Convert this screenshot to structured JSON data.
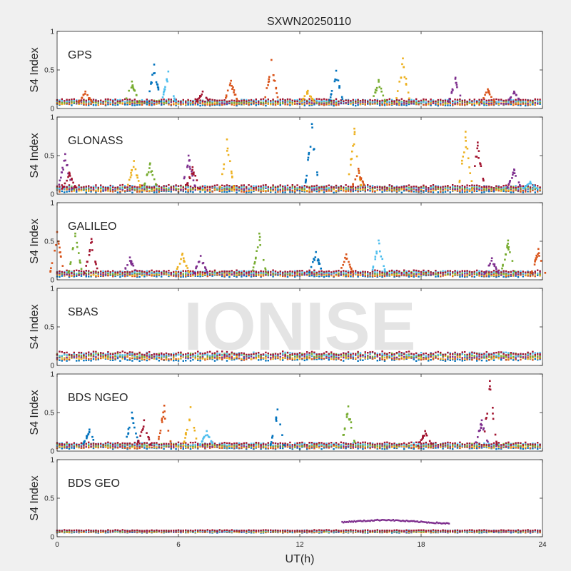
{
  "figure": {
    "title": "SXWN20250110",
    "watermark": "IONISE",
    "background": "#f0f0f0",
    "axes_background": "#ffffff"
  },
  "chart_data": {
    "type": "scatter",
    "title": "SXWN20250110",
    "xlabel": "UT(h)",
    "ylabel": "S4 Index",
    "xlim": [
      0,
      24
    ],
    "ylim": [
      0,
      1
    ],
    "xticks": [
      0,
      6,
      12,
      18,
      24
    ],
    "yticks": [
      0,
      0.5,
      1
    ],
    "ytick_labels": [
      "0",
      "0.5",
      "1"
    ],
    "grid": false,
    "series_colors": [
      "#0072BD",
      "#D95319",
      "#EDB120",
      "#7E2F8E",
      "#77AC30",
      "#4DBEEE",
      "#A2142F"
    ],
    "panels": [
      {
        "label": "GPS",
        "baseline": 0.08,
        "noise": 0.035,
        "spikes": [
          {
            "x": 1.4,
            "peak": 0.22,
            "color": 1
          },
          {
            "x": 3.7,
            "peak": 0.35,
            "color": 4
          },
          {
            "x": 4.8,
            "peak": 0.57,
            "color": 0
          },
          {
            "x": 5.5,
            "peak": 0.48,
            "color": 5
          },
          {
            "x": 7.2,
            "peak": 0.22,
            "color": 6
          },
          {
            "x": 8.6,
            "peak": 0.36,
            "color": 1
          },
          {
            "x": 10.6,
            "peak": 0.63,
            "color": 1
          },
          {
            "x": 12.4,
            "peak": 0.23,
            "color": 2
          },
          {
            "x": 13.8,
            "peak": 0.49,
            "color": 0
          },
          {
            "x": 15.9,
            "peak": 0.37,
            "color": 4
          },
          {
            "x": 17.1,
            "peak": 0.65,
            "color": 2
          },
          {
            "x": 19.7,
            "peak": 0.4,
            "color": 3
          },
          {
            "x": 21.3,
            "peak": 0.25,
            "color": 1
          },
          {
            "x": 22.6,
            "peak": 0.22,
            "color": 3
          }
        ]
      },
      {
        "label": "GLONASS",
        "baseline": 0.07,
        "noise": 0.04,
        "spikes": [
          {
            "x": 0.4,
            "peak": 0.52,
            "color": 3
          },
          {
            "x": 0.6,
            "peak": 0.28,
            "color": 6
          },
          {
            "x": 3.8,
            "peak": 0.43,
            "color": 2
          },
          {
            "x": 4.6,
            "peak": 0.4,
            "color": 4
          },
          {
            "x": 6.5,
            "peak": 0.5,
            "color": 3
          },
          {
            "x": 6.7,
            "peak": 0.35,
            "color": 6
          },
          {
            "x": 8.4,
            "peak": 0.71,
            "color": 2
          },
          {
            "x": 12.6,
            "peak": 0.91,
            "color": 0
          },
          {
            "x": 14.7,
            "peak": 0.85,
            "color": 2
          },
          {
            "x": 14.9,
            "peak": 0.33,
            "color": 1
          },
          {
            "x": 20.2,
            "peak": 0.81,
            "color": 2
          },
          {
            "x": 20.8,
            "peak": 0.67,
            "color": 6
          },
          {
            "x": 22.6,
            "peak": 0.32,
            "color": 3
          },
          {
            "x": 23.4,
            "peak": 0.16,
            "color": 5
          }
        ]
      },
      {
        "label": "GALILEO",
        "baseline": 0.08,
        "noise": 0.035,
        "spikes": [
          {
            "x": 0.0,
            "peak": 0.62,
            "color": 1
          },
          {
            "x": 0.9,
            "peak": 0.6,
            "color": 4
          },
          {
            "x": 1.7,
            "peak": 0.53,
            "color": 6
          },
          {
            "x": 3.6,
            "peak": 0.29,
            "color": 3
          },
          {
            "x": 6.2,
            "peak": 0.34,
            "color": 2
          },
          {
            "x": 7.1,
            "peak": 0.31,
            "color": 3
          },
          {
            "x": 10.0,
            "peak": 0.6,
            "color": 4
          },
          {
            "x": 12.8,
            "peak": 0.36,
            "color": 0
          },
          {
            "x": 14.3,
            "peak": 0.33,
            "color": 1
          },
          {
            "x": 15.9,
            "peak": 0.51,
            "color": 5
          },
          {
            "x": 21.5,
            "peak": 0.28,
            "color": 3
          },
          {
            "x": 22.3,
            "peak": 0.51,
            "color": 4
          },
          {
            "x": 23.8,
            "peak": 0.4,
            "color": 1
          }
        ]
      },
      {
        "label": "SBAS",
        "baseline": 0.12,
        "noise": 0.05,
        "spikes": []
      },
      {
        "label": "BDS NGEO",
        "baseline": 0.07,
        "noise": 0.035,
        "spikes": [
          {
            "x": 1.6,
            "peak": 0.28,
            "color": 0
          },
          {
            "x": 3.7,
            "peak": 0.5,
            "color": 0
          },
          {
            "x": 4.3,
            "peak": 0.4,
            "color": 6
          },
          {
            "x": 5.3,
            "peak": 0.59,
            "color": 1
          },
          {
            "x": 6.6,
            "peak": 0.57,
            "color": 2
          },
          {
            "x": 7.4,
            "peak": 0.26,
            "color": 5
          },
          {
            "x": 10.9,
            "peak": 0.54,
            "color": 0
          },
          {
            "x": 14.4,
            "peak": 0.58,
            "color": 4
          },
          {
            "x": 18.2,
            "peak": 0.26,
            "color": 6
          },
          {
            "x": 21.4,
            "peak": 0.91,
            "color": 6
          },
          {
            "x": 21.0,
            "peak": 0.4,
            "color": 3
          }
        ]
      },
      {
        "label": "BDS GEO",
        "baseline": 0.07,
        "noise": 0.015,
        "spikes": [],
        "segments": [
          {
            "x0": 14.1,
            "x1": 19.4,
            "y0": 0.19,
            "y1": 0.22,
            "y2": 0.17,
            "color": 3
          }
        ]
      }
    ]
  }
}
